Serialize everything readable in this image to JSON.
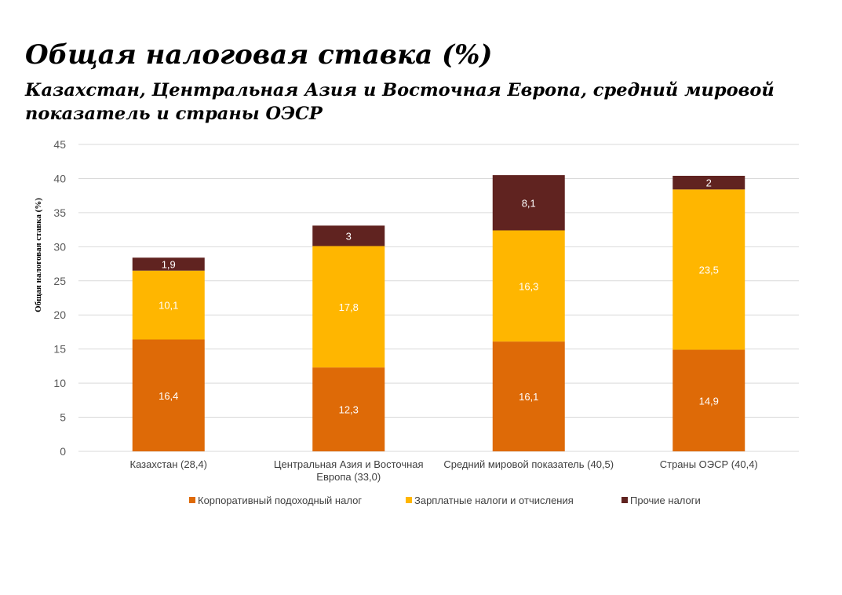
{
  "header": {
    "title": "Общая налоговая ставка (%)",
    "subtitle": "Казахстан, Центральная Азия и Восточная Европа, средний мировой показатель и страны ОЭСР"
  },
  "colors": {
    "corporate": "#DE6A07",
    "payroll": "#FFB600",
    "other": "#602320",
    "grid": "#D9D9D9"
  },
  "chart_data": {
    "type": "bar",
    "stacked": true,
    "title": "Общая налоговая ставка (%)",
    "ylabel": "Общая налоговая ставка (%)",
    "xlabel": "",
    "ylim": [
      0,
      45
    ],
    "yticks": [
      0,
      5,
      10,
      15,
      20,
      25,
      30,
      35,
      40,
      45
    ],
    "grid": true,
    "legend_position": "bottom",
    "categories": [
      [
        "Казахстан (28,4)"
      ],
      [
        "Центральная Азия и Восточная",
        "Европа (33,0)"
      ],
      [
        "Средний мировой показатель (40,5)"
      ],
      [
        "Страны ОЭСР (40,4)"
      ]
    ],
    "series": [
      {
        "name": "Корпоративный подоходный налог",
        "color_key": "corporate",
        "values": [
          16.4,
          12.3,
          16.1,
          14.9
        ],
        "labels": [
          "16,4",
          "12,3",
          "16,1",
          "14,9"
        ]
      },
      {
        "name": "Зарплатные налоги и отчисления",
        "color_key": "payroll",
        "values": [
          10.1,
          17.8,
          16.3,
          23.5
        ],
        "labels": [
          "10,1",
          "17,8",
          "16,3",
          "23,5"
        ]
      },
      {
        "name": "Прочие налоги",
        "color_key": "other",
        "values": [
          1.9,
          3.0,
          8.1,
          2.0
        ],
        "labels": [
          "1,9",
          "3",
          "8,1",
          "2"
        ]
      }
    ]
  }
}
